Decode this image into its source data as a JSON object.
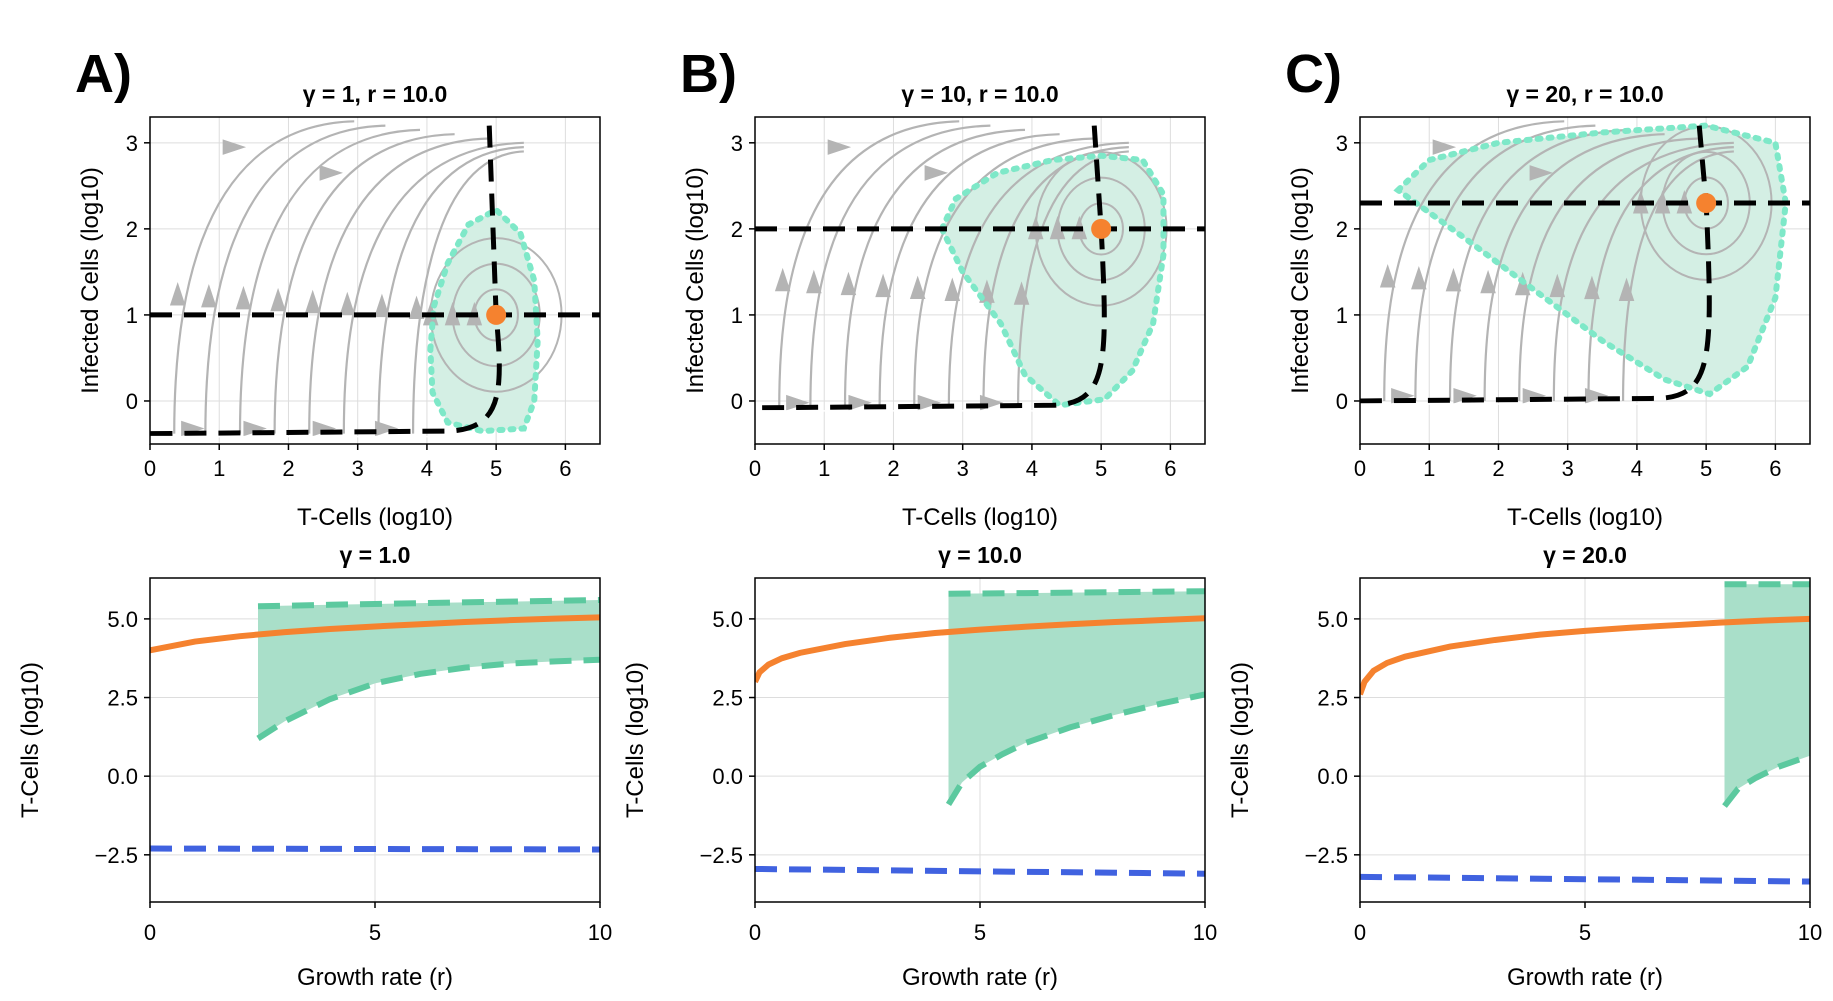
{
  "colors": {
    "stream": "#b4b4b4",
    "nullcline": "#000000",
    "basin_fill": "#d4efe4",
    "basin_border": "#7ee8c8",
    "equilibrium": "#f5822f",
    "band_fill": "#a9dfc9",
    "band_edge": "#5cc99f",
    "orange_line": "#f5822f",
    "blue_line": "#4062e0"
  },
  "panels": [
    {
      "letter": "A)",
      "phase": {
        "title": "γ = 1, r = 10.0",
        "xlabel": "T-Cells (log10)",
        "ylabel": "Infected Cells (log10)",
        "xticks": [
          "0",
          "1",
          "2",
          "3",
          "4",
          "5",
          "6"
        ],
        "yticks": [
          "0",
          "1",
          "2",
          "3"
        ],
        "xlim": [
          0,
          6.5
        ],
        "ylim": [
          -0.5,
          3.3
        ],
        "equilibrium": {
          "x": 5.0,
          "y": 1.0
        },
        "h_nullcline_y": 1.0,
        "lower_nullcline_y": -0.38,
        "basin": [
          [
            4.05,
            0.6
          ],
          [
            4.1,
            1.1
          ],
          [
            4.3,
            1.6
          ],
          [
            4.6,
            2.05
          ],
          [
            5.0,
            2.22
          ],
          [
            5.35,
            1.95
          ],
          [
            5.55,
            1.4
          ],
          [
            5.6,
            0.7
          ],
          [
            5.55,
            0.0
          ],
          [
            5.4,
            -0.32
          ],
          [
            4.8,
            -0.35
          ],
          [
            4.3,
            -0.25
          ],
          [
            4.08,
            0.1
          ]
        ]
      },
      "bifurcation": {
        "title": "γ = 1.0",
        "xlabel": "Growth rate (r)",
        "ylabel": "T-Cells (log10)",
        "xticks": [
          "0",
          "5",
          "10"
        ],
        "yticks": [
          "5.0",
          "2.5",
          "0.0",
          "−2.5"
        ],
        "xlim": [
          0,
          10
        ],
        "ylim": [
          -4.0,
          6.3
        ],
        "orange": {
          "r": [
            0,
            1,
            2,
            3,
            4,
            5,
            6,
            7,
            8,
            9,
            10
          ],
          "y": [
            4.0,
            4.28,
            4.45,
            4.58,
            4.68,
            4.76,
            4.83,
            4.9,
            4.96,
            5.01,
            5.05
          ]
        },
        "band_start": 2.4,
        "band_upper": {
          "r": [
            2.4,
            4,
            6,
            8,
            10
          ],
          "y": [
            5.4,
            5.45,
            5.5,
            5.55,
            5.6
          ]
        },
        "band_lower": {
          "r": [
            2.4,
            3,
            4,
            5,
            6,
            7,
            8,
            9,
            10
          ],
          "y": [
            1.2,
            1.75,
            2.45,
            2.95,
            3.25,
            3.45,
            3.58,
            3.65,
            3.7
          ]
        },
        "blue": {
          "r": [
            0,
            10
          ],
          "y": [
            -2.3,
            -2.33
          ]
        }
      }
    },
    {
      "letter": "B)",
      "phase": {
        "title": "γ = 10, r = 10.0",
        "xlabel": "T-Cells (log10)",
        "ylabel": "Infected Cells (log10)",
        "xticks": [
          "0",
          "1",
          "2",
          "3",
          "4",
          "5",
          "6"
        ],
        "yticks": [
          "0",
          "1",
          "2",
          "3"
        ],
        "xlim": [
          0,
          6.5
        ],
        "ylim": [
          -0.5,
          3.3
        ],
        "equilibrium": {
          "x": 5.0,
          "y": 2.0
        },
        "h_nullcline_y": 2.0,
        "lower_nullcline_y": -0.08,
        "basin": [
          [
            2.7,
            2.0
          ],
          [
            2.9,
            2.35
          ],
          [
            3.5,
            2.65
          ],
          [
            4.3,
            2.8
          ],
          [
            5.0,
            2.85
          ],
          [
            5.6,
            2.8
          ],
          [
            5.9,
            2.4
          ],
          [
            5.9,
            1.7
          ],
          [
            5.75,
            0.9
          ],
          [
            5.45,
            0.35
          ],
          [
            5.05,
            0.02
          ],
          [
            4.4,
            -0.05
          ],
          [
            3.9,
            0.3
          ],
          [
            3.55,
            0.9
          ],
          [
            3.0,
            1.5
          ]
        ]
      },
      "bifurcation": {
        "title": "γ = 10.0",
        "xlabel": "Growth rate (r)",
        "ylabel": "T-Cells (log10)",
        "xticks": [
          "0",
          "5",
          "10"
        ],
        "yticks": [
          "5.0",
          "2.5",
          "0.0",
          "−2.5"
        ],
        "xlim": [
          0,
          10
        ],
        "ylim": [
          -4.0,
          6.3
        ],
        "orange": {
          "r": [
            0,
            0.1,
            0.3,
            0.6,
            1,
            2,
            3,
            4,
            5,
            6,
            7,
            8,
            9,
            10
          ],
          "y": [
            3.0,
            3.3,
            3.55,
            3.75,
            3.92,
            4.2,
            4.4,
            4.55,
            4.66,
            4.75,
            4.83,
            4.9,
            4.96,
            5.02
          ]
        },
        "band_start": 4.3,
        "band_upper": {
          "r": [
            4.3,
            6,
            8,
            10
          ],
          "y": [
            5.8,
            5.82,
            5.85,
            5.88
          ]
        },
        "band_lower": {
          "r": [
            4.3,
            4.6,
            5,
            5.5,
            6,
            7,
            8,
            9,
            10
          ],
          "y": [
            -0.9,
            -0.2,
            0.3,
            0.7,
            1.05,
            1.55,
            1.95,
            2.3,
            2.6
          ]
        },
        "blue": {
          "r": [
            0,
            10
          ],
          "y": [
            -2.95,
            -3.1
          ]
        }
      }
    },
    {
      "letter": "C)",
      "phase": {
        "title": "γ = 20, r = 10.0",
        "xlabel": "T-Cells (log10)",
        "ylabel": "Infected Cells (log10)",
        "xticks": [
          "0",
          "1",
          "2",
          "3",
          "4",
          "5",
          "6"
        ],
        "yticks": [
          "0",
          "1",
          "2",
          "3"
        ],
        "xlim": [
          0,
          6.5
        ],
        "ylim": [
          -0.5,
          3.3
        ],
        "equilibrium": {
          "x": 5.0,
          "y": 2.3
        },
        "h_nullcline_y": 2.3,
        "lower_nullcline_y": 0.0,
        "basin": [
          [
            0.55,
            2.45
          ],
          [
            1.0,
            2.8
          ],
          [
            2.0,
            3.0
          ],
          [
            3.5,
            3.12
          ],
          [
            5.0,
            3.2
          ],
          [
            6.0,
            3.0
          ],
          [
            6.15,
            2.3
          ],
          [
            6.0,
            1.2
          ],
          [
            5.6,
            0.4
          ],
          [
            5.05,
            0.08
          ],
          [
            4.4,
            0.25
          ],
          [
            3.5,
            0.7
          ],
          [
            2.5,
            1.3
          ],
          [
            1.5,
            1.9
          ]
        ]
      },
      "bifurcation": {
        "title": "γ = 20.0",
        "xlabel": "Growth rate (r)",
        "ylabel": "T-Cells (log10)",
        "xticks": [
          "0",
          "5",
          "10"
        ],
        "yticks": [
          "5.0",
          "2.5",
          "0.0",
          "−2.5"
        ],
        "xlim": [
          0,
          10
        ],
        "ylim": [
          -4.0,
          6.3
        ],
        "orange": {
          "r": [
            0,
            0.1,
            0.3,
            0.6,
            1,
            2,
            3,
            4,
            5,
            6,
            7,
            8,
            9,
            10
          ],
          "y": [
            2.6,
            3.0,
            3.35,
            3.6,
            3.8,
            4.12,
            4.33,
            4.5,
            4.62,
            4.72,
            4.8,
            4.88,
            4.95,
            5.0
          ]
        },
        "band_start": 8.1,
        "band_upper": {
          "r": [
            8.1,
            9,
            10
          ],
          "y": [
            6.1,
            6.1,
            6.1
          ]
        },
        "band_lower": {
          "r": [
            8.1,
            8.4,
            8.8,
            9.3,
            10
          ],
          "y": [
            -0.95,
            -0.4,
            -0.05,
            0.3,
            0.65
          ]
        },
        "blue": {
          "r": [
            0,
            10
          ],
          "y": [
            -3.2,
            -3.35
          ]
        }
      }
    }
  ]
}
